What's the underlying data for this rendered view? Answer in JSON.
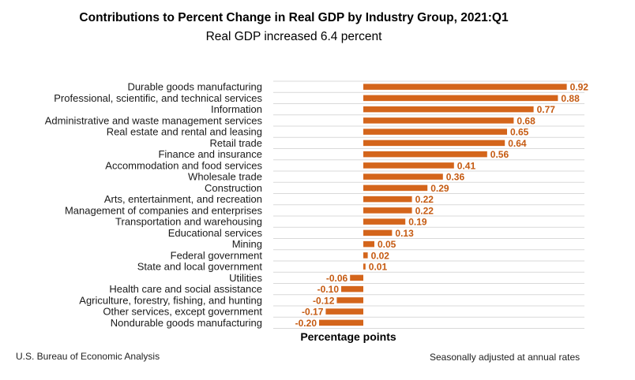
{
  "chart_data": {
    "type": "bar",
    "orientation": "horizontal",
    "title": "Contributions to Percent Change in Real GDP by Industry Group, 2021:Q1",
    "subtitle": "Real GDP increased 6.4 percent",
    "xlabel": "Percentage points",
    "ylabel": "",
    "xlim": [
      -0.25,
      1.0
    ],
    "grid": "horizontal",
    "bar_color": "#d4651b",
    "label_color": "#c55a11",
    "categories": [
      "Durable goods manufacturing",
      "Professional, scientific, and technical services",
      "Information",
      "Administrative and waste management services",
      "Real estate and rental and leasing",
      "Retail trade",
      "Finance and insurance",
      "Accommodation and food services",
      "Wholesale trade",
      "Construction",
      "Arts, entertainment, and recreation",
      "Management of companies and enterprises",
      "Transportation and warehousing",
      "Educational services",
      "Mining",
      "Federal government",
      "State and local government",
      "Utilities",
      "Health care and social assistance",
      "Agriculture, forestry, fishing, and hunting",
      "Other services, except government",
      "Nondurable goods manufacturing"
    ],
    "values": [
      0.92,
      0.88,
      0.77,
      0.68,
      0.65,
      0.64,
      0.56,
      0.41,
      0.36,
      0.29,
      0.22,
      0.22,
      0.19,
      0.13,
      0.05,
      0.02,
      0.01,
      -0.06,
      -0.1,
      -0.12,
      -0.17,
      -0.2
    ],
    "value_labels": [
      "0.92",
      "0.88",
      "0.77",
      "0.68",
      "0.65",
      "0.64",
      "0.56",
      "0.41",
      "0.36",
      "0.29",
      "0.22",
      "0.22",
      "0.19",
      "0.13",
      "0.05",
      "0.02",
      "0.01",
      "-0.06",
      "-0.10",
      "-0.12",
      "-0.17",
      "-0.20"
    ]
  },
  "footer": {
    "source": "U.S. Bureau of Economic Analysis",
    "note": "Seasonally adjusted at annual rates"
  }
}
